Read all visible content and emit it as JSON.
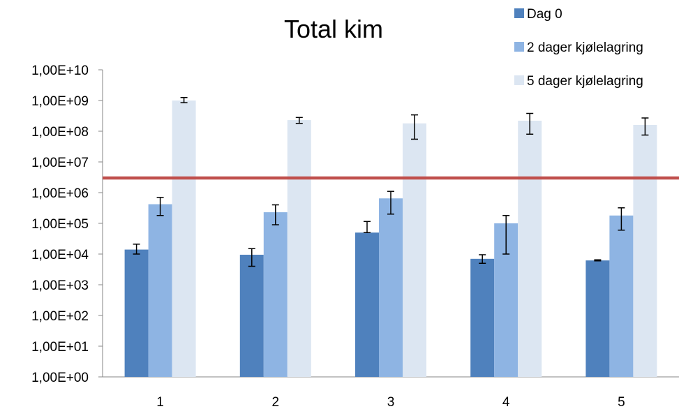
{
  "chart_data": {
    "type": "bar",
    "title": "Total kim",
    "xlabel": "",
    "ylabel": "",
    "y_scale": "log",
    "ylim": [
      1,
      10000000000
    ],
    "y_tick_labels": [
      "1,00E+00",
      "1,00E+01",
      "1,00E+02",
      "1,00E+03",
      "1,00E+04",
      "1,00E+05",
      "1,00E+06",
      "1,00E+07",
      "1,00E+08",
      "1,00E+09",
      "1,00E+10"
    ],
    "categories": [
      "1",
      "2",
      "3",
      "4",
      "5"
    ],
    "legend_position": "top-right",
    "series": [
      {
        "name": "Dag 0",
        "color": "#4F81BD",
        "values": [
          14000,
          9500,
          50000,
          7000,
          6200
        ],
        "error_low": [
          10000,
          4000,
          50000,
          5000,
          6000
        ],
        "error_high": [
          21000,
          15000,
          115000,
          9500,
          6500
        ]
      },
      {
        "name": "2 dager kjølelagring",
        "color": "#8EB4E3",
        "values": [
          420000,
          230000,
          650000,
          100000,
          180000
        ],
        "error_low": [
          180000,
          90000,
          200000,
          10000,
          60000
        ],
        "error_high": [
          700000,
          400000,
          1100000,
          180000,
          320000
        ]
      },
      {
        "name": "5 dager kjølelagring",
        "color": "#DCE6F2",
        "values": [
          1000000000,
          230000000,
          180000000,
          220000000,
          160000000
        ],
        "error_low": [
          850000000,
          180000000,
          55000000,
          80000000,
          75000000
        ],
        "error_high": [
          1250000000,
          280000000,
          340000000,
          380000000,
          270000000
        ]
      }
    ],
    "reference_line": {
      "value": 3000000,
      "color": "#C0504D"
    },
    "grid": false
  }
}
